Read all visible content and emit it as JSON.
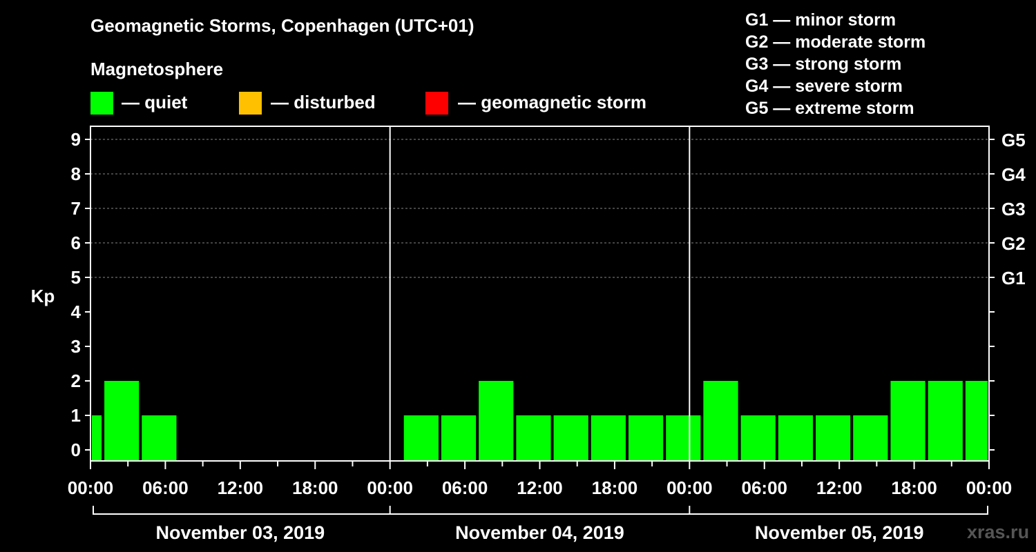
{
  "header": {
    "title": "Geomagnetic Storms, Copenhagen (UTC+01)",
    "subtitle": "Magnetosphere"
  },
  "legend": [
    {
      "label": "— quiet",
      "color": "#00ff00"
    },
    {
      "label": "— disturbed",
      "color": "#ffc000"
    },
    {
      "label": "— geomagnetic storm",
      "color": "#ff0000"
    }
  ],
  "storm_levels": [
    "G1 — minor storm",
    "G2 — moderate storm",
    "G3 — strong storm",
    "G4 — severe storm",
    "G5 — extreme storm"
  ],
  "watermark": "xras.ru",
  "chart_data": {
    "type": "bar",
    "title": "Geomagnetic Storms, Copenhagen (UTC+01)",
    "ylabel": "Kp",
    "ylim": [
      0,
      9
    ],
    "yticks": [
      "0",
      "1",
      "2",
      "3",
      "4",
      "5",
      "6",
      "7",
      "8",
      "9"
    ],
    "right_axis_labels": [
      {
        "kp": 5,
        "label": "G1"
      },
      {
        "kp": 6,
        "label": "G2"
      },
      {
        "kp": 7,
        "label": "G3"
      },
      {
        "kp": 8,
        "label": "G4"
      },
      {
        "kp": 9,
        "label": "G5"
      }
    ],
    "xlim_hours": [
      0,
      72
    ],
    "x_tick_labels": [
      {
        "hour": 0,
        "label": "00:00"
      },
      {
        "hour": 6,
        "label": "06:00"
      },
      {
        "hour": 12,
        "label": "12:00"
      },
      {
        "hour": 18,
        "label": "18:00"
      },
      {
        "hour": 24,
        "label": "00:00"
      },
      {
        "hour": 30,
        "label": "06:00"
      },
      {
        "hour": 36,
        "label": "12:00"
      },
      {
        "hour": 42,
        "label": "18:00"
      },
      {
        "hour": 48,
        "label": "00:00"
      },
      {
        "hour": 54,
        "label": "06:00"
      },
      {
        "hour": 60,
        "label": "12:00"
      },
      {
        "hour": 66,
        "label": "18:00"
      },
      {
        "hour": 72,
        "label": "00:00"
      }
    ],
    "dates": [
      "November 03, 2019",
      "November 04, 2019",
      "November 05, 2019"
    ],
    "grid_dashed_at": [
      5,
      6,
      7,
      8,
      9
    ],
    "bars": [
      {
        "start": -1,
        "end": 1,
        "kp": 1
      },
      {
        "start": 1,
        "end": 4,
        "kp": 2
      },
      {
        "start": 4,
        "end": 7,
        "kp": 1
      },
      {
        "start": 25,
        "end": 28,
        "kp": 1
      },
      {
        "start": 28,
        "end": 31,
        "kp": 1
      },
      {
        "start": 31,
        "end": 34,
        "kp": 2
      },
      {
        "start": 34,
        "end": 37,
        "kp": 1
      },
      {
        "start": 37,
        "end": 40,
        "kp": 1
      },
      {
        "start": 40,
        "end": 43,
        "kp": 1
      },
      {
        "start": 43,
        "end": 46,
        "kp": 1
      },
      {
        "start": 46,
        "end": 49,
        "kp": 1
      },
      {
        "start": 49,
        "end": 52,
        "kp": 2
      },
      {
        "start": 52,
        "end": 55,
        "kp": 1
      },
      {
        "start": 55,
        "end": 58,
        "kp": 1
      },
      {
        "start": 58,
        "end": 61,
        "kp": 1
      },
      {
        "start": 61,
        "end": 64,
        "kp": 1
      },
      {
        "start": 64,
        "end": 67,
        "kp": 2
      },
      {
        "start": 67,
        "end": 70,
        "kp": 2
      },
      {
        "start": 70,
        "end": 73,
        "kp": 2
      }
    ],
    "bar_color": "#00ff00"
  }
}
